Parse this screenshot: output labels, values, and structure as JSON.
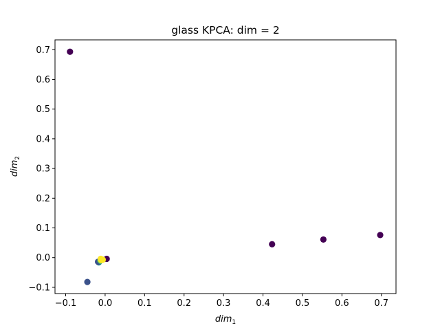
{
  "chart_data": {
    "type": "scatter",
    "title": "glass KPCA: dim = 2",
    "xlabel": {
      "base": "dim",
      "sub": "1"
    },
    "ylabel": {
      "base": "dim",
      "sub": "2"
    },
    "xlim": [
      -0.127,
      0.737
    ],
    "ylim": [
      -0.121,
      0.733
    ],
    "xticks": [
      -0.1,
      0.0,
      0.1,
      0.2,
      0.3,
      0.4,
      0.5,
      0.6,
      0.7
    ],
    "xtick_labels": [
      "−0.1",
      "0.0",
      "0.1",
      "0.2",
      "0.3",
      "0.4",
      "0.5",
      "0.6",
      "0.7"
    ],
    "yticks": [
      -0.1,
      0.0,
      0.1,
      0.2,
      0.3,
      0.4,
      0.5,
      0.6,
      0.7
    ],
    "ytick_labels": [
      "−0.1",
      "0.0",
      "0.1",
      "0.2",
      "0.3",
      "0.4",
      "0.5",
      "0.6",
      "0.7"
    ],
    "grid": false,
    "points": [
      {
        "x": -0.089,
        "y": 0.693,
        "color": "#440154"
      },
      {
        "x": 0.423,
        "y": 0.045,
        "color": "#440154"
      },
      {
        "x": 0.553,
        "y": 0.061,
        "color": "#440154"
      },
      {
        "x": 0.697,
        "y": 0.076,
        "color": "#440154"
      },
      {
        "x": 0.004,
        "y": -0.004,
        "color": "#440154"
      },
      {
        "x": -0.045,
        "y": -0.082,
        "color": "#3b528b"
      },
      {
        "x": -0.016,
        "y": -0.016,
        "color": "#21918c"
      },
      {
        "x": -0.018,
        "y": -0.014,
        "color": "#3b528b"
      },
      {
        "x": -0.012,
        "y": -0.01,
        "color": "#5ec962"
      },
      {
        "x": -0.01,
        "y": -0.008,
        "color": "#fde725"
      },
      {
        "x": -0.008,
        "y": -0.006,
        "color": "#fde725"
      },
      {
        "x": -0.006,
        "y": -0.007,
        "color": "#fde725"
      },
      {
        "x": -0.011,
        "y": -0.004,
        "color": "#fde725"
      }
    ]
  }
}
